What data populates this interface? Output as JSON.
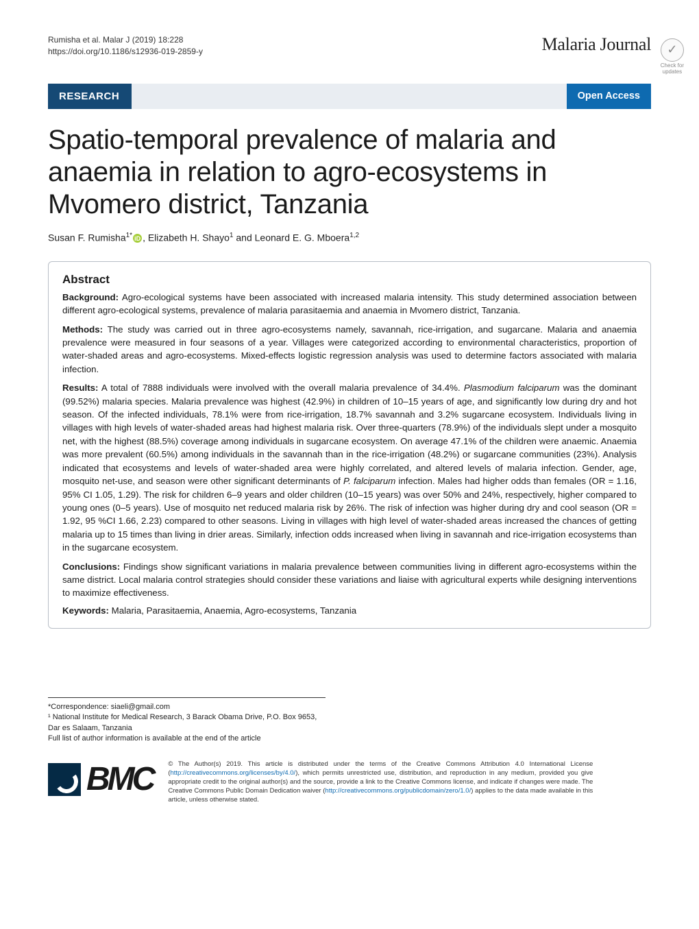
{
  "header": {
    "citation_line1": "Rumisha et al. Malar J           (2019) 18:228",
    "citation_line2": "https://doi.org/10.1186/s12936-019-2859-y",
    "journal": "Malaria Journal"
  },
  "banner": {
    "research_label": "RESEARCH",
    "open_access_label": "Open Access",
    "bg_left": "#154975",
    "bg_mid": "#e9edf2",
    "bg_right": "#0e6ab0"
  },
  "crossmark": {
    "line1": "Check for",
    "line2": "updates"
  },
  "title": "Spatio-temporal prevalence of malaria and anaemia in relation to agro-ecosystems in Mvomero district, Tanzania",
  "authors_html": "Susan F. Rumisha<sup>1*</sup><span class=\"orcid-icon\">iD</span>, Elizabeth H. Shayo<sup>1</sup> and Leonard E. G. Mboera<sup>1,2</sup>",
  "abstract": {
    "heading": "Abstract",
    "background": {
      "label": "Background:",
      "text": " Agro-ecological systems have been associated with increased malaria intensity. This study determined association between different agro-ecological systems, prevalence of malaria parasitaemia and anaemia in Mvomero district, Tanzania."
    },
    "methods": {
      "label": "Methods:",
      "text": " The study was carried out in three agro-ecosystems namely, savannah, rice-irrigation, and sugarcane. Malaria and anaemia prevalence were measured in four seasons of a year. Villages were categorized according to environmental characteristics, proportion of water-shaded areas and agro-ecosystems. Mixed-effects logistic regression analysis was used to determine factors associated with malaria infection."
    },
    "results": {
      "label": "Results:",
      "text": " A total of 7888 individuals were involved with the overall malaria prevalence of 34.4%. <em>Plasmodium falciparum</em> was the dominant (99.52%) malaria species. Malaria prevalence was highest (42.9%) in children of 10–15 years of age, and significantly low during dry and hot season. Of the infected individuals, 78.1% were from rice-irrigation, 18.7% savannah and 3.2% sugarcane ecosystem. Individuals living in villages with high levels of water-shaded areas had highest malaria risk. Over three-quarters (78.9%) of the individuals slept under a mosquito net, with the highest (88.5%) coverage among individuals in sugarcane ecosystem. On average 47.1% of the children were anaemic. Anaemia was more prevalent (60.5%) among individuals in the savannah than in the rice-irrigation (48.2%) or sugarcane communities (23%). Analysis indicated that ecosystems and levels of water-shaded area were highly correlated, and altered levels of malaria infection. Gender, age, mosquito net-use, and season were other significant determinants of <em>P. falciparum</em> infection. Males had higher odds than females (OR = 1.16, 95% CI 1.05, 1.29). The risk for children 6–9 years and older children (10–15 years) was over 50% and 24%, respectively, higher compared to young ones (0–5 years). Use of mosquito net reduced malaria risk by 26%. The risk of infection was higher during dry and cool season (OR = 1.92, 95 %CI 1.66, 2.23) compared to other seasons. Living in villages with high level of water-shaded areas increased the chances of getting malaria up to 15 times than living in drier areas. Similarly, infection odds increased when living in savannah and rice-irrigation ecosystems than in the sugarcane ecosystem."
    },
    "conclusions": {
      "label": "Conclusions:",
      "text": " Findings show significant variations in malaria prevalence between communities living in different agro-ecosystems within the same district. Local malaria control strategies should consider these variations and liaise with agricultural experts while designing interventions to maximize effectiveness."
    },
    "keywords": {
      "label": "Keywords:",
      "text": " Malaria, Parasitaemia, Anaemia, Agro-ecosystems, Tanzania"
    }
  },
  "footnotes": {
    "correspondence": "*Correspondence: siaeli@gmail.com",
    "affiliation1": "¹ National Institute for Medical Research, 3 Barack Obama Drive, P.O. Box 9653, Dar es Salaam, Tanzania",
    "full_list": "Full list of author information is available at the end of the article"
  },
  "footer": {
    "bmc": "BMC",
    "license": "© The Author(s) 2019. This article is distributed under the terms of the Creative Commons Attribution 4.0 International License (<a>http://creativecommons.org/licenses/by/4.0/</a>), which permits unrestricted use, distribution, and reproduction in any medium, provided you give appropriate credit to the original author(s) and the source, provide a link to the Creative Commons license, and indicate if changes were made. The Creative Commons Public Domain Dedication waiver (<a>http://creativecommons.org/publicdomain/zero/1.0/</a>) applies to the data made available in this article, unless otherwise stated."
  }
}
